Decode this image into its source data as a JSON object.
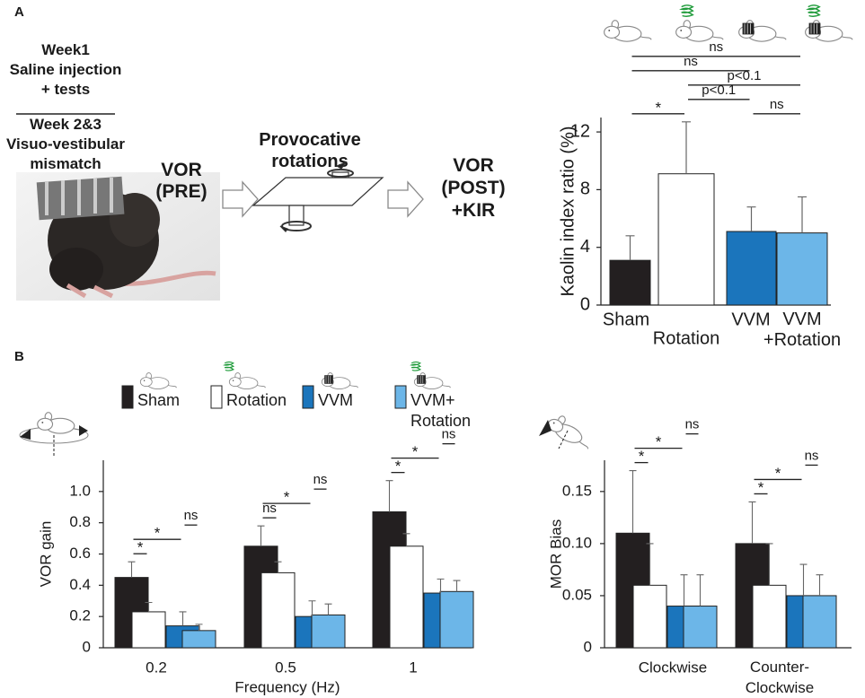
{
  "panel_a": {
    "label": "A",
    "week1": "Week1\nSaline injection\n+ tests",
    "week23": "Week 2&3\nVisuo-vestibular\nmismatch",
    "vor_pre": "VOR\n(PRE)",
    "provocative": "Provocative\nrotations",
    "vor_post": "VOR\n(POST)\n+KIR"
  },
  "panel_b": {
    "label": "B"
  },
  "chart_data": [
    {
      "type": "bar",
      "ylabel": "Kaolin index ratio (%)",
      "categories": [
        "Sham",
        "Rotation",
        "VVM",
        "VVM\n+Rotation"
      ],
      "values": [
        3.1,
        9.1,
        5.1,
        5.0
      ],
      "errors": [
        1.7,
        3.6,
        1.7,
        2.5
      ],
      "colors": [
        "#231f20",
        "#ffffff",
        "#1b75bc",
        "#6cb6e8"
      ],
      "ylim": [
        0,
        13
      ],
      "yticks": [
        0,
        4,
        8,
        12
      ],
      "significance": [
        {
          "between": [
            0,
            1
          ],
          "label": "*"
        },
        {
          "between": [
            2,
            3
          ],
          "label": "ns"
        },
        {
          "between": [
            1,
            2
          ],
          "label": "p<0.1"
        },
        {
          "between": [
            1,
            3
          ],
          "label": "p<0.1"
        },
        {
          "between": [
            0,
            2
          ],
          "label": "ns"
        },
        {
          "between": [
            0,
            3
          ],
          "label": "ns"
        }
      ]
    },
    {
      "type": "grouped_bar",
      "ylabel": "VOR gain",
      "xlabel": "Frequency (Hz)",
      "categories": [
        "0.2",
        "0.5",
        "1"
      ],
      "series": [
        {
          "name": "Sham",
          "color": "#231f20",
          "values": [
            0.45,
            0.65,
            0.87
          ],
          "errors": [
            0.1,
            0.13,
            0.2
          ]
        },
        {
          "name": "Rotation",
          "color": "#ffffff",
          "values": [
            0.23,
            0.48,
            0.65
          ],
          "errors": [
            0.06,
            0.07,
            0.08
          ]
        },
        {
          "name": "VVM",
          "color": "#1b75bc",
          "values": [
            0.14,
            0.2,
            0.35
          ],
          "errors": [
            0.09,
            0.1,
            0.09
          ]
        },
        {
          "name": "VVM+\nRotation",
          "color": "#6cb6e8",
          "values": [
            0.11,
            0.21,
            0.36
          ],
          "errors": [
            0.04,
            0.07,
            0.07
          ]
        }
      ],
      "ylim": [
        0,
        1.2
      ],
      "yticks": [
        0,
        0.2,
        0.4,
        0.6,
        0.8,
        {
          "value": 1,
          "label": "1.0"
        }
      ],
      "significance": [
        {
          "group": 0,
          "between": [
            0,
            1
          ],
          "label": "*"
        },
        {
          "group": 0,
          "between": [
            0,
            2
          ],
          "label": "*"
        },
        {
          "group": 0,
          "between": [
            2,
            3
          ],
          "label": "ns"
        },
        {
          "group": 1,
          "between": [
            0,
            1
          ],
          "label": "ns"
        },
        {
          "group": 1,
          "between": [
            0,
            2
          ],
          "label": "*"
        },
        {
          "group": 1,
          "between": [
            2,
            3
          ],
          "label": "ns"
        },
        {
          "group": 2,
          "between": [
            0,
            1
          ],
          "label": "*"
        },
        {
          "group": 2,
          "between": [
            0,
            2
          ],
          "label": "*"
        },
        {
          "group": 2,
          "between": [
            2,
            3
          ],
          "label": "ns"
        }
      ]
    },
    {
      "type": "grouped_bar",
      "ylabel": "MOR Bias",
      "categories": [
        "Clockwise",
        "Counter-\nClockwise"
      ],
      "series": [
        {
          "color": "#231f20",
          "values": [
            0.11,
            0.1
          ],
          "errors": [
            0.06,
            0.04
          ]
        },
        {
          "color": "#ffffff",
          "values": [
            0.06,
            0.06
          ],
          "errors": [
            0.04,
            0.04
          ]
        },
        {
          "color": "#1b75bc",
          "values": [
            0.04,
            0.05
          ],
          "errors": [
            0.03,
            0.03
          ]
        },
        {
          "color": "#6cb6e8",
          "values": [
            0.04,
            0.05
          ],
          "errors": [
            0.03,
            0.02
          ]
        }
      ],
      "ylim": [
        0,
        0.18
      ],
      "yticks": [
        0,
        0.05,
        {
          "value": 0.1,
          "label": "0.10"
        },
        0.15
      ],
      "significance": [
        {
          "group": 0,
          "between": [
            0,
            1
          ],
          "label": "*"
        },
        {
          "group": 0,
          "between": [
            0,
            2
          ],
          "label": "*"
        },
        {
          "group": 0,
          "between": [
            2,
            3
          ],
          "label": "ns"
        },
        {
          "group": 1,
          "between": [
            0,
            1
          ],
          "label": "*"
        },
        {
          "group": 1,
          "between": [
            0,
            2
          ],
          "label": "*"
        },
        {
          "group": 1,
          "between": [
            2,
            3
          ],
          "label": "ns"
        }
      ]
    }
  ]
}
